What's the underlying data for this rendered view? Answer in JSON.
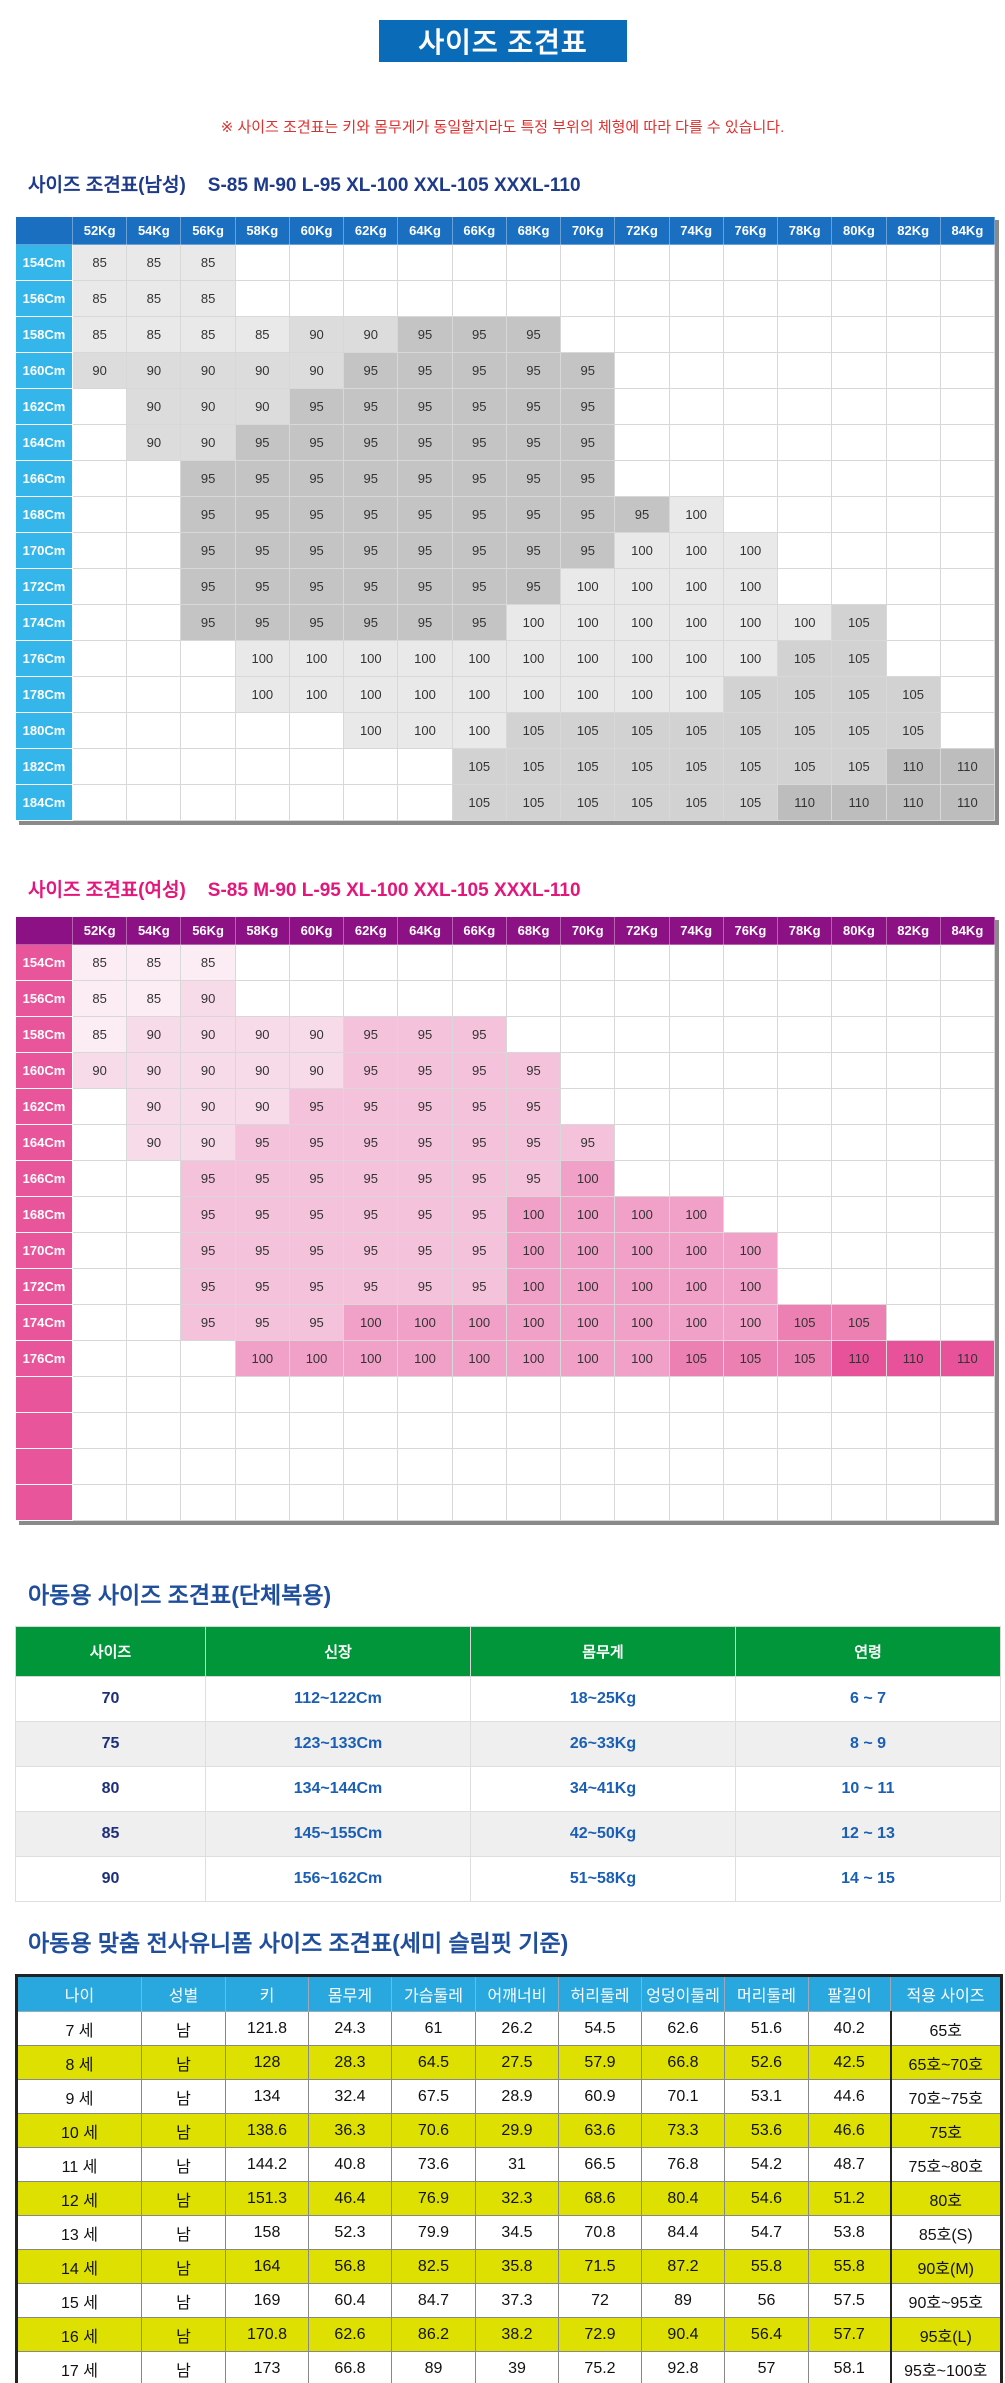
{
  "title": "사이즈 조견표",
  "notice": "※ 사이즈 조견표는 키와 몸무게가 동일할지라도 특정 부위의 체형에 따라 다를 수 있습니다.",
  "male": {
    "title": "사이즈 조견표(남성)",
    "sizes": "S-85  M-90  L-95  XL-100  XXL-105  XXXL-110",
    "colors": {
      "header": "#1a6fc0",
      "row_header": "#35b6ea",
      "85": "#e9e9e9",
      "90": "#dcdcdc",
      "95": "#c4c4c4",
      "100": "#e9e9e9",
      "105": "#d2d2d2",
      "110": "#bdbdbd"
    },
    "weights": [
      "52Kg",
      "54Kg",
      "56Kg",
      "58Kg",
      "60Kg",
      "62Kg",
      "64Kg",
      "66Kg",
      "68Kg",
      "70Kg",
      "72Kg",
      "74Kg",
      "76Kg",
      "78Kg",
      "80Kg",
      "82Kg",
      "84Kg"
    ],
    "rows": [
      {
        "height": "154Cm",
        "values": [
          "85",
          "85",
          "85",
          "",
          "",
          "",
          "",
          "",
          "",
          "",
          "",
          "",
          "",
          "",
          "",
          "",
          ""
        ]
      },
      {
        "height": "156Cm",
        "values": [
          "85",
          "85",
          "85",
          "",
          "",
          "",
          "",
          "",
          "",
          "",
          "",
          "",
          "",
          "",
          "",
          "",
          ""
        ]
      },
      {
        "height": "158Cm",
        "values": [
          "85",
          "85",
          "85",
          "85",
          "90",
          "90",
          "95",
          "95",
          "95",
          "",
          "",
          "",
          "",
          "",
          "",
          "",
          ""
        ]
      },
      {
        "height": "160Cm",
        "values": [
          "90",
          "90",
          "90",
          "90",
          "90",
          "95",
          "95",
          "95",
          "95",
          "95",
          "",
          "",
          "",
          "",
          "",
          "",
          ""
        ]
      },
      {
        "height": "162Cm",
        "values": [
          "",
          "90",
          "90",
          "90",
          "95",
          "95",
          "95",
          "95",
          "95",
          "95",
          "",
          "",
          "",
          "",
          "",
          "",
          ""
        ]
      },
      {
        "height": "164Cm",
        "values": [
          "",
          "90",
          "90",
          "95",
          "95",
          "95",
          "95",
          "95",
          "95",
          "95",
          "",
          "",
          "",
          "",
          "",
          "",
          ""
        ]
      },
      {
        "height": "166Cm",
        "values": [
          "",
          "",
          "95",
          "95",
          "95",
          "95",
          "95",
          "95",
          "95",
          "95",
          "",
          "",
          "",
          "",
          "",
          "",
          ""
        ]
      },
      {
        "height": "168Cm",
        "values": [
          "",
          "",
          "95",
          "95",
          "95",
          "95",
          "95",
          "95",
          "95",
          "95",
          "95",
          "100",
          "",
          "",
          "",
          "",
          ""
        ]
      },
      {
        "height": "170Cm",
        "values": [
          "",
          "",
          "95",
          "95",
          "95",
          "95",
          "95",
          "95",
          "95",
          "95",
          "100",
          "100",
          "100",
          "",
          "",
          "",
          ""
        ]
      },
      {
        "height": "172Cm",
        "values": [
          "",
          "",
          "95",
          "95",
          "95",
          "95",
          "95",
          "95",
          "95",
          "100",
          "100",
          "100",
          "100",
          "",
          "",
          "",
          ""
        ]
      },
      {
        "height": "174Cm",
        "values": [
          "",
          "",
          "95",
          "95",
          "95",
          "95",
          "95",
          "95",
          "100",
          "100",
          "100",
          "100",
          "100",
          "100",
          "105",
          "",
          ""
        ]
      },
      {
        "height": "176Cm",
        "values": [
          "",
          "",
          "",
          "100",
          "100",
          "100",
          "100",
          "100",
          "100",
          "100",
          "100",
          "100",
          "100",
          "105",
          "105",
          "",
          ""
        ]
      },
      {
        "height": "178Cm",
        "values": [
          "",
          "",
          "",
          "100",
          "100",
          "100",
          "100",
          "100",
          "100",
          "100",
          "100",
          "100",
          "105",
          "105",
          "105",
          "105",
          ""
        ]
      },
      {
        "height": "180Cm",
        "values": [
          "",
          "",
          "",
          "",
          "",
          "100",
          "100",
          "100",
          "105",
          "105",
          "105",
          "105",
          "105",
          "105",
          "105",
          "105",
          ""
        ]
      },
      {
        "height": "182Cm",
        "values": [
          "",
          "",
          "",
          "",
          "",
          "",
          "",
          "105",
          "105",
          "105",
          "105",
          "105",
          "105",
          "105",
          "105",
          "110",
          "110"
        ]
      },
      {
        "height": "184Cm",
        "values": [
          "",
          "",
          "",
          "",
          "",
          "",
          "",
          "105",
          "105",
          "105",
          "105",
          "105",
          "105",
          "110",
          "110",
          "110",
          "110"
        ]
      }
    ]
  },
  "female": {
    "title": "사이즈 조견표(여성)",
    "sizes": "S-85  M-90  L-95  XL-100  XXL-105  XXXL-110",
    "colors": {
      "header": "#8c1185",
      "row_header": "#e8559a",
      "85": "#fcedf4",
      "90": "#f8dbe9",
      "95": "#f4c2da",
      "100": "#f1a0c7",
      "105": "#ec80b2",
      "110": "#e8529a"
    },
    "weights": [
      "52Kg",
      "54Kg",
      "56Kg",
      "58Kg",
      "60Kg",
      "62Kg",
      "64Kg",
      "66Kg",
      "68Kg",
      "70Kg",
      "72Kg",
      "74Kg",
      "76Kg",
      "78Kg",
      "80Kg",
      "82Kg",
      "84Kg"
    ],
    "rows": [
      {
        "height": "154Cm",
        "values": [
          "85",
          "85",
          "85",
          "",
          "",
          "",
          "",
          "",
          "",
          "",
          "",
          "",
          "",
          "",
          "",
          "",
          ""
        ]
      },
      {
        "height": "156Cm",
        "values": [
          "85",
          "85",
          "90",
          "",
          "",
          "",
          "",
          "",
          "",
          "",
          "",
          "",
          "",
          "",
          "",
          "",
          ""
        ]
      },
      {
        "height": "158Cm",
        "values": [
          "85",
          "90",
          "90",
          "90",
          "90",
          "95",
          "95",
          "95",
          "",
          "",
          "",
          "",
          "",
          "",
          "",
          "",
          ""
        ]
      },
      {
        "height": "160Cm",
        "values": [
          "90",
          "90",
          "90",
          "90",
          "90",
          "95",
          "95",
          "95",
          "95",
          "",
          "",
          "",
          "",
          "",
          "",
          "",
          ""
        ]
      },
      {
        "height": "162Cm",
        "values": [
          "",
          "90",
          "90",
          "90",
          "95",
          "95",
          "95",
          "95",
          "95",
          "",
          "",
          "",
          "",
          "",
          "",
          "",
          ""
        ]
      },
      {
        "height": "164Cm",
        "values": [
          "",
          "90",
          "90",
          "95",
          "95",
          "95",
          "95",
          "95",
          "95",
          "95",
          "",
          "",
          "",
          "",
          "",
          "",
          ""
        ]
      },
      {
        "height": "166Cm",
        "values": [
          "",
          "",
          "95",
          "95",
          "95",
          "95",
          "95",
          "95",
          "95",
          "100",
          "",
          "",
          "",
          "",
          "",
          "",
          ""
        ]
      },
      {
        "height": "168Cm",
        "values": [
          "",
          "",
          "95",
          "95",
          "95",
          "95",
          "95",
          "95",
          "100",
          "100",
          "100",
          "100",
          "",
          "",
          "",
          "",
          ""
        ]
      },
      {
        "height": "170Cm",
        "values": [
          "",
          "",
          "95",
          "95",
          "95",
          "95",
          "95",
          "95",
          "100",
          "100",
          "100",
          "100",
          "100",
          "",
          "",
          "",
          ""
        ]
      },
      {
        "height": "172Cm",
        "values": [
          "",
          "",
          "95",
          "95",
          "95",
          "95",
          "95",
          "95",
          "100",
          "100",
          "100",
          "100",
          "100",
          "",
          "",
          "",
          ""
        ]
      },
      {
        "height": "174Cm",
        "values": [
          "",
          "",
          "95",
          "95",
          "95",
          "100",
          "100",
          "100",
          "100",
          "100",
          "100",
          "100",
          "100",
          "105",
          "105",
          "",
          ""
        ]
      },
      {
        "height": "176Cm",
        "values": [
          "",
          "",
          "",
          "100",
          "100",
          "100",
          "100",
          "100",
          "100",
          "100",
          "100",
          "105",
          "105",
          "105",
          "110",
          "110",
          "110"
        ]
      },
      {
        "height": "",
        "values": [
          "",
          "",
          "",
          "",
          "",
          "",
          "",
          "",
          "",
          "",
          "",
          "",
          "",
          "",
          "",
          "",
          ""
        ]
      },
      {
        "height": "",
        "values": [
          "",
          "",
          "",
          "",
          "",
          "",
          "",
          "",
          "",
          "",
          "",
          "",
          "",
          "",
          "",
          "",
          ""
        ]
      },
      {
        "height": "",
        "values": [
          "",
          "",
          "",
          "",
          "",
          "",
          "",
          "",
          "",
          "",
          "",
          "",
          "",
          "",
          "",
          "",
          ""
        ]
      },
      {
        "height": "",
        "values": [
          "",
          "",
          "",
          "",
          "",
          "",
          "",
          "",
          "",
          "",
          "",
          "",
          "",
          "",
          "",
          "",
          ""
        ]
      }
    ]
  },
  "kids": {
    "title": "아동용 사이즈 조견표(단체복용)",
    "headers": [
      "사이즈",
      "신장",
      "몸무게",
      "연령"
    ],
    "rows": [
      [
        "70",
        "112~122Cm",
        "18~25Kg",
        "6 ~ 7"
      ],
      [
        "75",
        "123~133Cm",
        "26~33Kg",
        "8 ~ 9"
      ],
      [
        "80",
        "134~144Cm",
        "34~41Kg",
        "10 ~ 11"
      ],
      [
        "85",
        "145~155Cm",
        "42~50Kg",
        "12 ~ 13"
      ],
      [
        "90",
        "156~162Cm",
        "51~58Kg",
        "14 ~ 15"
      ]
    ]
  },
  "uniform": {
    "title": "아동용 맞춤 전사유니폼 사이즈 조견표(세미 슬림핏 기준)",
    "headers": [
      "나이",
      "성별",
      "키",
      "몸무게",
      "가슴둘레",
      "어깨너비",
      "허리둘레",
      "엉덩이둘레",
      "머리둘레",
      "팔길이",
      "적용 사이즈"
    ],
    "rows": [
      [
        "7 세",
        "남",
        "121.8",
        "24.3",
        "61",
        "26.2",
        "54.5",
        "62.6",
        "51.6",
        "40.2",
        "65호"
      ],
      [
        "8 세",
        "남",
        "128",
        "28.3",
        "64.5",
        "27.5",
        "57.9",
        "66.8",
        "52.6",
        "42.5",
        "65호~70호"
      ],
      [
        "9 세",
        "남",
        "134",
        "32.4",
        "67.5",
        "28.9",
        "60.9",
        "70.1",
        "53.1",
        "44.6",
        "70호~75호"
      ],
      [
        "10 세",
        "남",
        "138.6",
        "36.3",
        "70.6",
        "29.9",
        "63.6",
        "73.3",
        "53.6",
        "46.6",
        "75호"
      ],
      [
        "11 세",
        "남",
        "144.2",
        "40.8",
        "73.6",
        "31",
        "66.5",
        "76.8",
        "54.2",
        "48.7",
        "75호~80호"
      ],
      [
        "12 세",
        "남",
        "151.3",
        "46.4",
        "76.9",
        "32.3",
        "68.6",
        "80.4",
        "54.6",
        "51.2",
        "80호"
      ],
      [
        "13 세",
        "남",
        "158",
        "52.3",
        "79.9",
        "34.5",
        "70.8",
        "84.4",
        "54.7",
        "53.8",
        "85호(S)"
      ],
      [
        "14 세",
        "남",
        "164",
        "56.8",
        "82.5",
        "35.8",
        "71.5",
        "87.2",
        "55.8",
        "55.8",
        "90호(M)"
      ],
      [
        "15 세",
        "남",
        "169",
        "60.4",
        "84.7",
        "37.3",
        "72",
        "89",
        "56",
        "57.5",
        "90호~95호"
      ],
      [
        "16 세",
        "남",
        "170.8",
        "62.6",
        "86.2",
        "38.2",
        "72.9",
        "90.4",
        "56.4",
        "57.7",
        "95호(L)"
      ],
      [
        "17 세",
        "남",
        "173",
        "66.8",
        "89",
        "39",
        "75.2",
        "92.8",
        "57",
        "58.1",
        "95호~100호"
      ]
    ]
  }
}
